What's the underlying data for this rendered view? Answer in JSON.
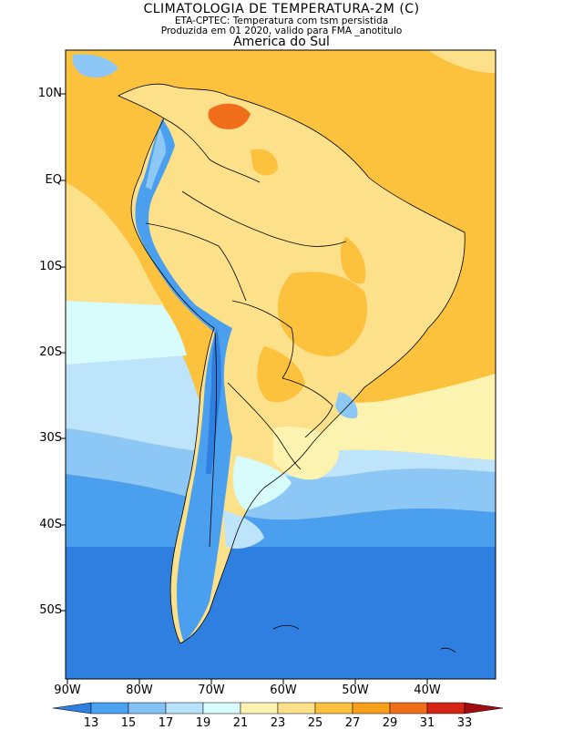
{
  "header": {
    "title": "CLIMATOLOGIA DE TEMPERATURA-2M (C)",
    "subtitle1": "ETA-CPTEC: Temperatura com tsm persistida",
    "subtitle2": "Produzida em 01 2020, valido para FMA _anotitulo",
    "region": "America do Sul"
  },
  "axes": {
    "lat_labels": [
      "10N",
      "EQ",
      "10S",
      "20S",
      "30S",
      "40S",
      "50S"
    ],
    "lon_labels": [
      "90W",
      "80W",
      "70W",
      "60W",
      "50W",
      "40W"
    ]
  },
  "colorbar": {
    "labels": [
      "13",
      "15",
      "17",
      "19",
      "21",
      "23",
      "25",
      "27",
      "29",
      "31",
      "33"
    ],
    "colors": [
      "#2f7fe0",
      "#4aa3f2",
      "#83c3f5",
      "#b8e2fb",
      "#d8fbfb",
      "#fdf3b0",
      "#fde08a",
      "#fcc23e",
      "#f9a01a",
      "#f06d1a",
      "#d62414",
      "#a00c10"
    ]
  },
  "palette": {
    "deep_cold": "#2e7fe0",
    "cold": "#4aa0ef",
    "cool": "#8cc7f6",
    "mild_cool": "#bde4fb",
    "mild": "#d8fbfb",
    "warm_pale": "#fdf3b0",
    "warm": "#fde08a",
    "hot": "#fcc23e",
    "hotter": "#f9a01a",
    "hottest": "#f06d1a",
    "border": "#000000"
  }
}
